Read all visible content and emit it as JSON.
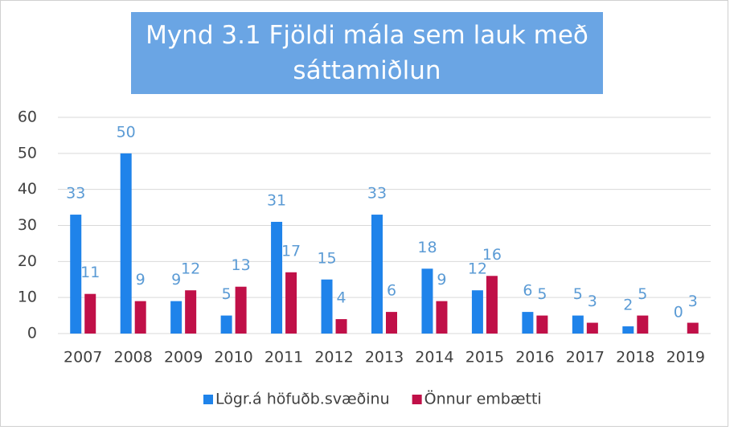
{
  "chart_data": {
    "type": "bar",
    "title": "Mynd 3.1 Fjöldi mála sem lauk með sáttamiðlun",
    "categories": [
      "2007",
      "2008",
      "2009",
      "2010",
      "2011",
      "2012",
      "2013",
      "2014",
      "2015",
      "2016",
      "2017",
      "2018",
      "2019"
    ],
    "series": [
      {
        "name": "Lögr.á höfuðb.svæðinu",
        "color": "#1f83ea",
        "values": [
          33,
          50,
          9,
          5,
          31,
          15,
          33,
          18,
          12,
          6,
          5,
          2,
          0
        ]
      },
      {
        "name": "Önnur embætti",
        "color": "#c01048",
        "values": [
          11,
          9,
          12,
          13,
          17,
          4,
          6,
          9,
          16,
          5,
          3,
          5,
          3
        ]
      }
    ],
    "ylim": [
      0,
      60
    ],
    "yticks": [
      0,
      10,
      20,
      30,
      40,
      50,
      60
    ],
    "grid": true,
    "legend": "bottom"
  }
}
